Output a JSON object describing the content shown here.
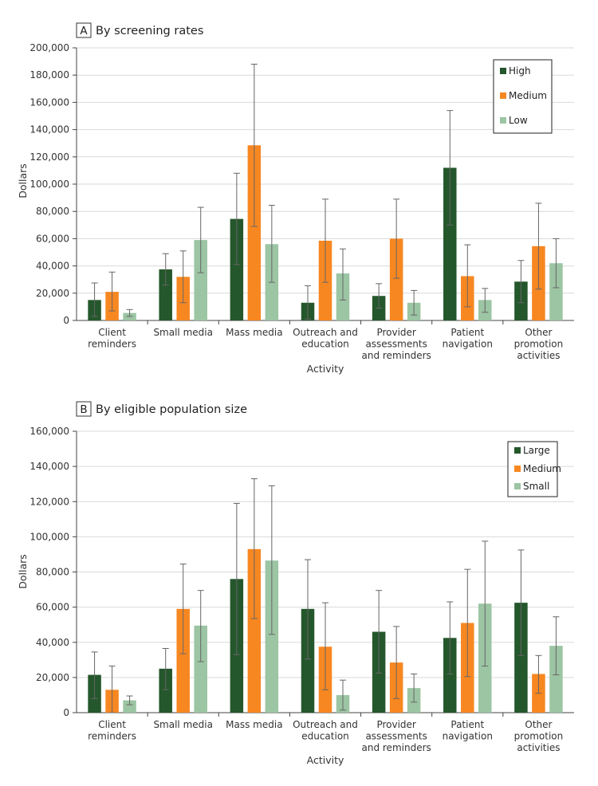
{
  "chart_data": [
    {
      "type": "bar",
      "panel_letter": "A",
      "title": "By screening rates",
      "xlabel": "Activity",
      "ylabel": "Dollars",
      "ylim": [
        0,
        200000
      ],
      "yticks": [
        0,
        20000,
        40000,
        60000,
        80000,
        100000,
        120000,
        140000,
        160000,
        180000,
        200000
      ],
      "ytick_labels": [
        "0",
        "20,000",
        "40,000",
        "60,000",
        "80,000",
        "100,000",
        "120,000",
        "140,000",
        "160,000",
        "180,000",
        "200,000"
      ],
      "categories": [
        [
          "Client",
          "reminders"
        ],
        [
          "Small media"
        ],
        [
          "Mass media"
        ],
        [
          "Outreach and",
          "education"
        ],
        [
          "Provider",
          "assessments",
          "and reminders"
        ],
        [
          "Patient",
          "navigation"
        ],
        [
          "Other",
          "promotion",
          "activities"
        ]
      ],
      "legend_position": "top-right",
      "series": [
        {
          "name": "High",
          "color": "#25572c",
          "values": [
            15000,
            37500,
            74500,
            13000,
            18000,
            112000,
            28500
          ],
          "error_low": [
            3000,
            26000,
            41000,
            1000,
            9000,
            70000,
            13000
          ],
          "error_high": [
            27500,
            49000,
            108000,
            25500,
            27000,
            154000,
            44000
          ]
        },
        {
          "name": "Medium",
          "color": "#f78721",
          "values": [
            21000,
            32000,
            128500,
            58500,
            60000,
            32500,
            54500
          ],
          "error_low": [
            7000,
            13000,
            69000,
            28000,
            31000,
            10000,
            23000
          ],
          "error_high": [
            35500,
            51000,
            188000,
            89000,
            89000,
            55500,
            86000
          ]
        },
        {
          "name": "Low",
          "color": "#9cc5a3",
          "values": [
            5500,
            59000,
            56000,
            34500,
            13000,
            15000,
            42000
          ],
          "error_low": [
            3000,
            35000,
            28000,
            15000,
            4000,
            6000,
            24000
          ],
          "error_high": [
            8000,
            83000,
            84500,
            52500,
            22000,
            23500,
            60000
          ]
        }
      ]
    },
    {
      "type": "bar",
      "panel_letter": "B",
      "title": "By eligible population size",
      "xlabel": "Activity",
      "ylabel": "Dollars",
      "ylim": [
        0,
        160000
      ],
      "yticks": [
        0,
        20000,
        40000,
        60000,
        80000,
        100000,
        120000,
        140000,
        160000
      ],
      "ytick_labels": [
        "0",
        "20,000",
        "40,000",
        "60,000",
        "80,000",
        "100,000",
        "120,000",
        "140,000",
        "160,000"
      ],
      "categories": [
        [
          "Client",
          "reminders"
        ],
        [
          "Small media"
        ],
        [
          "Mass media"
        ],
        [
          "Outreach and",
          "education"
        ],
        [
          "Provider",
          "assessments",
          "and reminders"
        ],
        [
          "Patient",
          "navigation"
        ],
        [
          "Other",
          "promotion",
          "activities"
        ]
      ],
      "legend_position": "top-right",
      "series": [
        {
          "name": "Large",
          "color": "#25572c",
          "values": [
            21500,
            25000,
            76000,
            59000,
            46000,
            42500,
            62500
          ],
          "error_low": [
            8000,
            13000,
            33000,
            30500,
            22500,
            22000,
            32500
          ],
          "error_high": [
            34500,
            36500,
            119000,
            87000,
            69500,
            63000,
            92500
          ]
        },
        {
          "name": "Medium",
          "color": "#f78721",
          "values": [
            13000,
            59000,
            93000,
            37500,
            28500,
            51000,
            22000
          ],
          "error_low": [
            0,
            33500,
            53500,
            13000,
            8000,
            20500,
            11000
          ],
          "error_high": [
            26500,
            84500,
            133000,
            62500,
            49000,
            81500,
            32500
          ]
        },
        {
          "name": "Small",
          "color": "#9cc5a3",
          "values": [
            7000,
            49500,
            86500,
            10000,
            14000,
            62000,
            38000
          ],
          "error_low": [
            4500,
            29000,
            44500,
            1500,
            6000,
            26500,
            21500
          ],
          "error_high": [
            9500,
            69500,
            129000,
            18500,
            22000,
            97500,
            54500
          ]
        }
      ]
    }
  ]
}
